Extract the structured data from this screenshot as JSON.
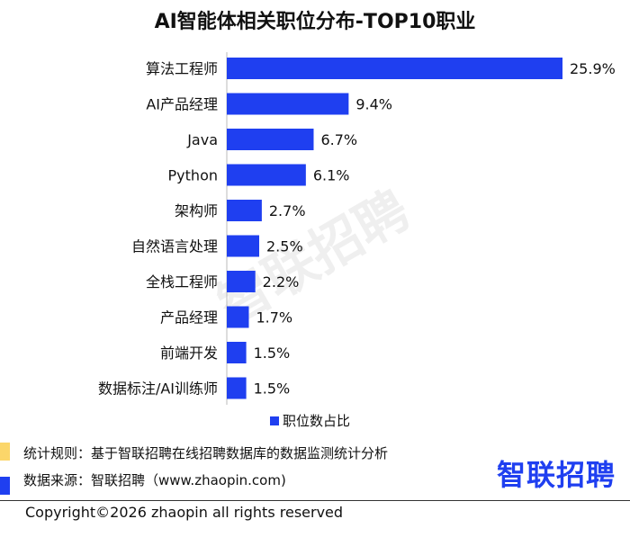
{
  "chart_data": {
    "type": "bar",
    "orientation": "horizontal",
    "title": "AI智能体相关职位分布-TOP10职业",
    "categories": [
      "算法工程师",
      "AI产品经理",
      "Java",
      "Python",
      "架构师",
      "自然语言处理",
      "全栈工程师",
      "产品经理",
      "前端开发",
      "数据标注/AI训练师"
    ],
    "series": [
      {
        "name": "职位数占比",
        "values": [
          25.9,
          9.4,
          6.7,
          6.1,
          2.7,
          2.5,
          2.2,
          1.7,
          1.5,
          1.5
        ],
        "color": "#1f3ff0"
      }
    ],
    "value_labels": [
      "25.9%",
      "9.4%",
      "6.7%",
      "6.1%",
      "2.7%",
      "2.5%",
      "2.2%",
      "1.7%",
      "1.5%",
      "1.5%"
    ],
    "legend": "bottom",
    "xlim": [
      0,
      26
    ]
  },
  "notes": {
    "rule": "统计规则：基于智联招聘在线招聘数据库的数据监测统计分析",
    "source": "数据来源：智联招聘（www.zhaopin.com)",
    "rule_color": "#fbd66a",
    "source_color": "#1f3ff0"
  },
  "watermark": "智联招聘",
  "logo": "智联招聘",
  "copyright": "Copyright©2026 zhaopin all rights reserved"
}
